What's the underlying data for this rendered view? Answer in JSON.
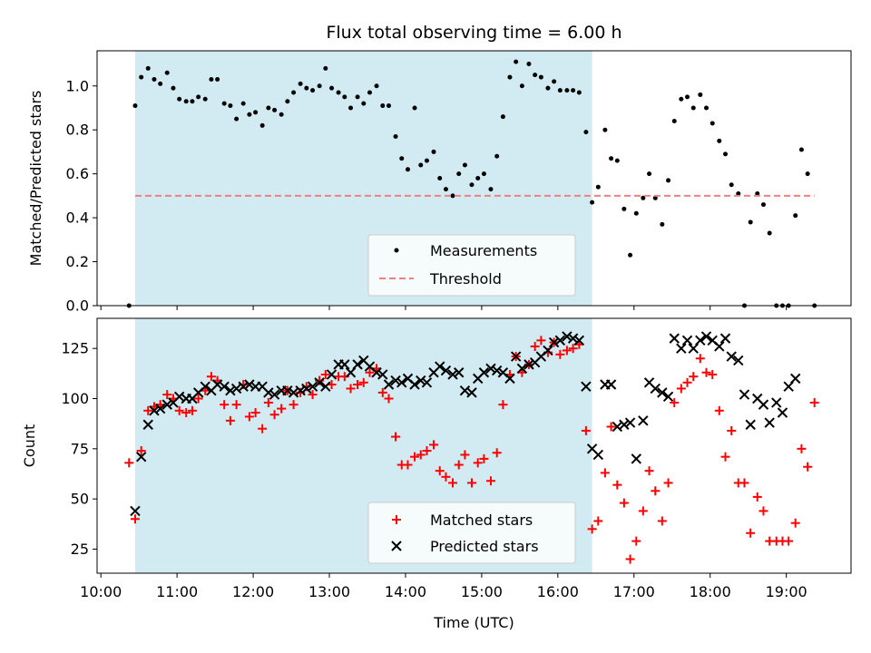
{
  "chart_data": [
    {
      "type": "scatter",
      "panel": "top",
      "title": "Flux total observing time = 6.00 h",
      "ylabel": "Matched/Predicted stars",
      "xlabel": "",
      "x_unit": "hours UTC",
      "xlim": [
        9.95,
        19.85
      ],
      "ylim": [
        0,
        1.16
      ],
      "yticks": [
        0.0,
        0.2,
        0.4,
        0.6,
        0.8,
        1.0
      ],
      "ytick_labels": [
        "0.0",
        "0.2",
        "0.4",
        "0.6",
        "0.8",
        "1.0"
      ],
      "shaded_x_range": [
        10.45,
        16.45
      ],
      "shade_color": "#add8e6",
      "legend_position": "lower-right-center",
      "series": [
        {
          "name": "Measurements",
          "marker": "dot",
          "color": "#000000",
          "x": [
            10.37,
            10.45,
            10.53,
            10.62,
            10.7,
            10.78,
            10.87,
            10.95,
            11.03,
            11.12,
            11.2,
            11.28,
            11.37,
            11.45,
            11.53,
            11.62,
            11.7,
            11.78,
            11.87,
            11.95,
            12.03,
            12.12,
            12.2,
            12.28,
            12.37,
            12.45,
            12.53,
            12.62,
            12.7,
            12.78,
            12.87,
            12.95,
            13.03,
            13.12,
            13.2,
            13.28,
            13.37,
            13.45,
            13.53,
            13.62,
            13.7,
            13.78,
            13.87,
            13.95,
            14.03,
            14.12,
            14.2,
            14.28,
            14.37,
            14.45,
            14.53,
            14.62,
            14.7,
            14.78,
            14.87,
            14.95,
            15.03,
            15.12,
            15.2,
            15.28,
            15.37,
            15.45,
            15.53,
            15.62,
            15.7,
            15.78,
            15.87,
            15.95,
            16.03,
            16.12,
            16.2,
            16.28,
            16.37,
            16.45,
            16.53,
            16.62,
            16.7,
            16.78,
            16.87,
            16.95,
            17.03,
            17.12,
            17.2,
            17.28,
            17.37,
            17.45,
            17.53,
            17.62,
            17.7,
            17.78,
            17.87,
            17.95,
            18.03,
            18.12,
            18.2,
            18.28,
            18.37,
            18.45,
            18.53,
            18.62,
            18.7,
            18.78,
            18.87,
            18.95,
            19.03,
            19.12,
            19.2,
            19.28,
            19.37
          ],
          "y": [
            0.0,
            0.91,
            1.04,
            1.08,
            1.03,
            1.01,
            1.06,
            0.99,
            0.94,
            0.93,
            0.93,
            0.95,
            0.94,
            1.03,
            1.03,
            0.92,
            0.91,
            0.85,
            0.92,
            0.87,
            0.88,
            0.82,
            0.9,
            0.89,
            0.87,
            0.93,
            0.97,
            1.01,
            0.99,
            0.98,
            1.0,
            1.08,
            0.99,
            0.97,
            0.95,
            0.9,
            0.95,
            0.92,
            0.97,
            1.0,
            0.91,
            0.91,
            0.77,
            0.67,
            0.62,
            0.9,
            0.64,
            0.66,
            0.7,
            0.58,
            0.53,
            0.5,
            0.6,
            0.64,
            0.55,
            0.58,
            0.6,
            0.53,
            0.68,
            0.86,
            1.04,
            1.11,
            1.0,
            1.1,
            1.05,
            1.04,
            0.99,
            1.02,
            0.98,
            0.98,
            0.98,
            0.97,
            0.79,
            0.47,
            0.54,
            0.8,
            0.67,
            0.66,
            0.44,
            0.23,
            0.42,
            0.49,
            0.6,
            0.49,
            0.37,
            0.57,
            0.84,
            0.94,
            0.95,
            0.9,
            0.96,
            0.9,
            0.83,
            0.75,
            0.69,
            0.55,
            0.51,
            0.0,
            0.38,
            0.51,
            0.46,
            0.33,
            0.0,
            0.0,
            0.0,
            0.41,
            0.71,
            0.6,
            0.0
          ]
        },
        {
          "name": "Threshold",
          "style": "dashed",
          "color": "#f08080",
          "x": [
            10.45,
            19.37
          ],
          "y": [
            0.5,
            0.5
          ]
        }
      ]
    },
    {
      "type": "scatter",
      "panel": "bottom",
      "title": "",
      "ylabel": "Count",
      "xlabel": "Time (UTC)",
      "xlim": [
        9.95,
        19.85
      ],
      "ylim": [
        13,
        140
      ],
      "yticks": [
        25,
        50,
        75,
        100,
        125
      ],
      "ytick_labels": [
        "25",
        "50",
        "75",
        "100",
        "125"
      ],
      "xticks": [
        10,
        11,
        12,
        13,
        14,
        15,
        16,
        17,
        18,
        19
      ],
      "xtick_labels": [
        "10:00",
        "11:00",
        "12:00",
        "13:00",
        "14:00",
        "15:00",
        "16:00",
        "17:00",
        "18:00",
        "19:00"
      ],
      "shaded_x_range": [
        10.45,
        16.45
      ],
      "shade_color": "#add8e6",
      "legend_position": "lower-right-center",
      "series": [
        {
          "name": "Matched stars",
          "marker": "plus",
          "color": "#ff0000",
          "x": [
            10.37,
            10.45,
            10.53,
            10.62,
            10.7,
            10.78,
            10.87,
            10.95,
            11.03,
            11.12,
            11.2,
            11.28,
            11.37,
            11.45,
            11.53,
            11.62,
            11.7,
            11.78,
            11.87,
            11.95,
            12.03,
            12.12,
            12.2,
            12.28,
            12.37,
            12.45,
            12.53,
            12.62,
            12.7,
            12.78,
            12.87,
            12.95,
            13.03,
            13.12,
            13.2,
            13.28,
            13.37,
            13.45,
            13.53,
            13.62,
            13.7,
            13.78,
            13.87,
            13.95,
            14.03,
            14.12,
            14.2,
            14.28,
            14.37,
            14.45,
            14.53,
            14.62,
            14.7,
            14.78,
            14.87,
            14.95,
            15.03,
            15.12,
            15.2,
            15.28,
            15.37,
            15.45,
            15.53,
            15.62,
            15.7,
            15.78,
            15.87,
            15.95,
            16.03,
            16.12,
            16.2,
            16.28,
            16.37,
            16.45,
            16.53,
            16.62,
            16.7,
            16.78,
            16.87,
            16.95,
            17.03,
            17.12,
            17.2,
            17.28,
            17.37,
            17.45,
            17.53,
            17.62,
            17.7,
            17.78,
            17.87,
            17.95,
            18.03,
            18.12,
            18.2,
            18.28,
            18.37,
            18.45,
            18.53,
            18.62,
            18.7,
            18.78,
            18.87,
            18.95,
            19.03,
            19.12,
            19.2,
            19.28,
            19.37
          ],
          "y": [
            68,
            40,
            74,
            94,
            96,
            97,
            102,
            100,
            94,
            93,
            94,
            100,
            104,
            111,
            109,
            97,
            89,
            97,
            107,
            91,
            93,
            85,
            98,
            92,
            95,
            104,
            97,
            103,
            106,
            102,
            109,
            112,
            107,
            111,
            111,
            105,
            107,
            108,
            113,
            115,
            103,
            100,
            81,
            67,
            67,
            71,
            72,
            74,
            77,
            64,
            61,
            58,
            67,
            72,
            58,
            68,
            70,
            59,
            73,
            97,
            112,
            121,
            113,
            117,
            126,
            129,
            123,
            128,
            122,
            124,
            125,
            127,
            84,
            35,
            39,
            63,
            86,
            57,
            48,
            20,
            29,
            44,
            64,
            54,
            39,
            58,
            98,
            105,
            108,
            111,
            120,
            113,
            112,
            94,
            71,
            84,
            58,
            58,
            33,
            51,
            44,
            29,
            29,
            29,
            29,
            38,
            75,
            66,
            98
          ]
        },
        {
          "name": "Predicted stars",
          "marker": "x",
          "color": "#000000",
          "x": [
            10.37,
            10.45,
            10.53,
            10.62,
            10.7,
            10.78,
            10.87,
            10.95,
            11.03,
            11.12,
            11.2,
            11.28,
            11.37,
            11.45,
            11.53,
            11.62,
            11.7,
            11.78,
            11.87,
            11.95,
            12.03,
            12.12,
            12.2,
            12.28,
            12.37,
            12.45,
            12.53,
            12.62,
            12.7,
            12.78,
            12.87,
            12.95,
            13.03,
            13.12,
            13.2,
            13.28,
            13.37,
            13.45,
            13.53,
            13.62,
            13.7,
            13.78,
            13.87,
            13.95,
            14.03,
            14.12,
            14.2,
            14.28,
            14.37,
            14.45,
            14.53,
            14.62,
            14.7,
            14.78,
            14.87,
            14.95,
            15.03,
            15.12,
            15.2,
            15.28,
            15.37,
            15.45,
            15.53,
            15.62,
            15.7,
            15.78,
            15.87,
            15.95,
            16.03,
            16.12,
            16.2,
            16.28,
            16.37,
            16.45,
            16.53,
            16.62,
            16.7,
            16.78,
            16.87,
            16.95,
            17.03,
            17.12,
            17.2,
            17.28,
            17.37,
            17.45,
            17.53,
            17.62,
            17.7,
            17.78,
            17.87,
            17.95,
            18.03,
            18.12,
            18.2,
            18.28,
            18.37,
            18.45,
            18.53,
            18.62,
            18.7,
            18.78,
            18.87,
            18.95,
            19.03,
            19.12,
            19.2,
            19.28,
            19.37
          ],
          "y": [
            null,
            44,
            71,
            87,
            94,
            95,
            97,
            98,
            101,
            100,
            100,
            103,
            106,
            104,
            107,
            106,
            104,
            105,
            106,
            107,
            106,
            106,
            103,
            102,
            104,
            104,
            103,
            104,
            105,
            106,
            108,
            106,
            112,
            117,
            117,
            113,
            117,
            119,
            116,
            113,
            112,
            107,
            109,
            108,
            110,
            107,
            109,
            108,
            113,
            116,
            114,
            112,
            113,
            104,
            103,
            110,
            113,
            115,
            114,
            113,
            110,
            121,
            115,
            117,
            118,
            121,
            124,
            128,
            129,
            131,
            130,
            129,
            106,
            75,
            72,
            107,
            107,
            86,
            87,
            88,
            70,
            89,
            108,
            105,
            103,
            101,
            130,
            125,
            129,
            125,
            129,
            131,
            129,
            126,
            130,
            121,
            119,
            102,
            87,
            100,
            97,
            88,
            98,
            93,
            106,
            110,
            null,
            null,
            null
          ]
        }
      ]
    }
  ]
}
